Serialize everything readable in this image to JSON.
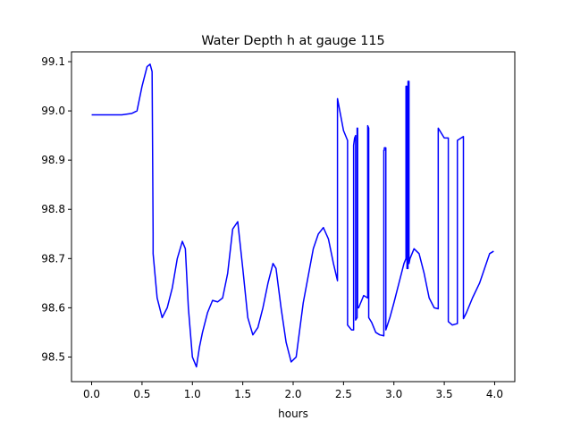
{
  "chart_data": {
    "type": "line",
    "title": "Water Depth h at gauge 115",
    "xlabel": "hours",
    "ylabel": "",
    "xlim": [
      -0.2,
      4.2
    ],
    "ylim": [
      98.45,
      99.12
    ],
    "xticks": [
      0.0,
      0.5,
      1.0,
      1.5,
      2.0,
      2.5,
      3.0,
      3.5,
      4.0
    ],
    "xtick_labels": [
      "0.0",
      "0.5",
      "1.0",
      "1.5",
      "2.0",
      "2.5",
      "3.0",
      "3.5",
      "4.0"
    ],
    "yticks": [
      98.5,
      98.6,
      98.7,
      98.8,
      98.9,
      99.0,
      99.1
    ],
    "ytick_labels": [
      "98.5",
      "98.6",
      "98.7",
      "98.8",
      "98.9",
      "99.0",
      "99.1"
    ],
    "grid": false,
    "legend": "none",
    "series": [
      {
        "color": "#0000ff",
        "x": [
          0.0,
          0.1,
          0.2,
          0.3,
          0.4,
          0.45,
          0.5,
          0.55,
          0.58,
          0.6,
          0.61,
          0.61,
          0.65,
          0.7,
          0.75,
          0.8,
          0.85,
          0.9,
          0.93,
          0.96,
          1.0,
          1.04,
          1.07,
          1.1,
          1.15,
          1.2,
          1.25,
          1.3,
          1.35,
          1.4,
          1.45,
          1.5,
          1.55,
          1.6,
          1.65,
          1.7,
          1.75,
          1.8,
          1.83,
          1.88,
          1.93,
          1.98,
          2.03,
          2.1,
          2.2,
          2.25,
          2.3,
          2.35,
          2.4,
          2.44,
          2.44,
          2.5,
          2.54,
          2.54,
          2.58,
          2.6,
          2.6,
          2.61,
          2.62,
          2.62,
          2.635,
          2.635,
          2.64,
          2.64,
          2.65,
          2.7,
          2.74,
          2.74,
          2.75,
          2.75,
          2.78,
          2.82,
          2.86,
          2.9,
          2.9,
          2.905,
          2.905,
          2.92,
          2.92,
          2.96,
          3.0,
          3.05,
          3.1,
          3.12,
          3.12,
          3.13,
          3.13,
          3.14,
          3.14,
          3.15,
          3.15,
          3.16,
          3.2,
          3.25,
          3.3,
          3.35,
          3.4,
          3.44,
          3.44,
          3.5,
          3.54,
          3.54,
          3.58,
          3.63,
          3.63,
          3.69,
          3.69,
          3.72,
          3.78,
          3.85,
          3.9,
          3.95,
          3.99
        ],
        "y": [
          98.992,
          98.992,
          98.992,
          98.992,
          98.995,
          99.0,
          99.05,
          99.09,
          99.095,
          99.08,
          98.75,
          98.71,
          98.62,
          98.58,
          98.6,
          98.64,
          98.7,
          98.735,
          98.72,
          98.6,
          98.5,
          98.48,
          98.52,
          98.55,
          98.59,
          98.615,
          98.612,
          98.62,
          98.67,
          98.76,
          98.775,
          98.68,
          98.58,
          98.545,
          98.56,
          98.6,
          98.65,
          98.69,
          98.68,
          98.6,
          98.53,
          98.49,
          98.5,
          98.61,
          98.72,
          98.75,
          98.763,
          98.74,
          98.69,
          98.655,
          99.025,
          98.96,
          98.94,
          98.565,
          98.555,
          98.555,
          98.93,
          98.945,
          98.95,
          98.575,
          98.58,
          98.965,
          98.965,
          98.6,
          98.6,
          98.625,
          98.62,
          98.97,
          98.965,
          98.58,
          98.57,
          98.55,
          98.545,
          98.543,
          98.92,
          98.92,
          98.925,
          98.925,
          98.555,
          98.58,
          98.61,
          98.65,
          98.69,
          98.7,
          99.05,
          99.05,
          98.68,
          98.68,
          99.06,
          99.06,
          98.69,
          98.7,
          98.72,
          98.71,
          98.67,
          98.62,
          98.6,
          98.598,
          98.965,
          98.945,
          98.945,
          98.572,
          98.565,
          98.568,
          98.94,
          98.948,
          98.578,
          98.59,
          98.62,
          98.65,
          98.68,
          98.71,
          98.715
        ]
      }
    ]
  }
}
